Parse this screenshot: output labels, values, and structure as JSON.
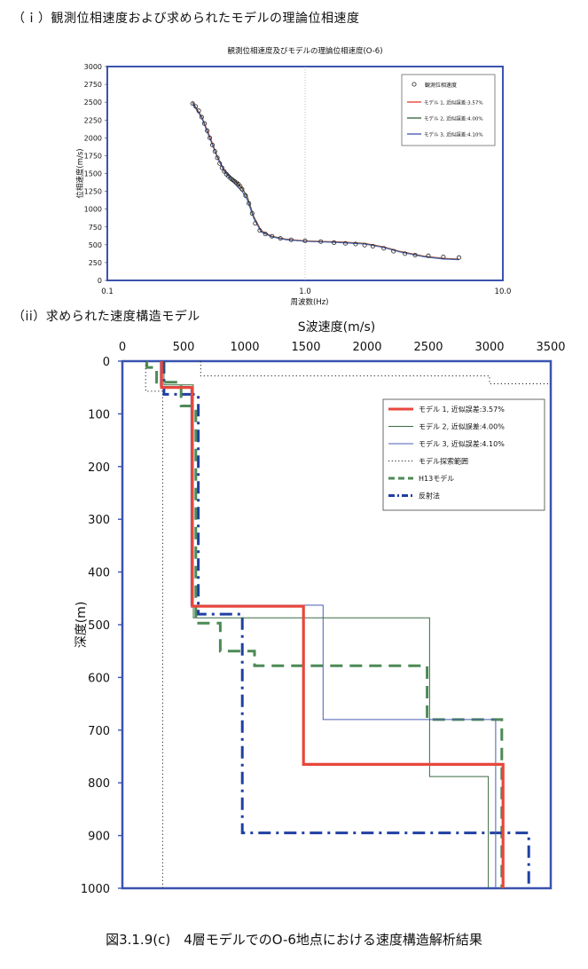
{
  "section_headings": {
    "s1": "（ｉ）観測位相速度および求められたモデルの理論位相速度",
    "s2": "（ii）求められた速度構造モデル"
  },
  "figure_caption": "図3.1.9(c)　4層モデルでのO-6地点における速度構造解析結果",
  "colors": {
    "frame": "#3a53b0",
    "model1": "#e8473c",
    "model2": "#3a6b43",
    "model3": "#4a5fb0",
    "h13": "#4d8a55",
    "reflection": "#1f3fa3",
    "search": "#222222"
  },
  "chart_data": [
    {
      "type": "scatter",
      "title": "観測位相速度及びモデルの理論位相速度(O-6)",
      "xlabel": "周波数(Hz)",
      "ylabel": "位相速度(m/s)",
      "xscale": "log",
      "xlim": [
        0.1,
        10.0
      ],
      "ylim": [
        0,
        3000
      ],
      "x_ticks": [
        "0.1",
        "1.0",
        "10.0"
      ],
      "y_ticks": [
        0,
        250,
        500,
        750,
        1000,
        1250,
        1500,
        1750,
        2000,
        2250,
        2500,
        2750,
        3000
      ],
      "legend_position": "top-right",
      "observed": {
        "name": "観測位相速度",
        "points": [
          [
            0.27,
            2480
          ],
          [
            0.28,
            2440
          ],
          [
            0.29,
            2380
          ],
          [
            0.3,
            2290
          ],
          [
            0.31,
            2200
          ],
          [
            0.32,
            2100
          ],
          [
            0.33,
            2000
          ],
          [
            0.34,
            1900
          ],
          [
            0.35,
            1810
          ],
          [
            0.36,
            1720
          ],
          [
            0.37,
            1640
          ],
          [
            0.38,
            1580
          ],
          [
            0.39,
            1530
          ],
          [
            0.4,
            1490
          ],
          [
            0.41,
            1460
          ],
          [
            0.42,
            1430
          ],
          [
            0.43,
            1410
          ],
          [
            0.44,
            1390
          ],
          [
            0.45,
            1370
          ],
          [
            0.46,
            1350
          ],
          [
            0.47,
            1320
          ],
          [
            0.48,
            1280
          ],
          [
            0.5,
            1190
          ],
          [
            0.52,
            1080
          ],
          [
            0.54,
            940
          ],
          [
            0.56,
            800
          ],
          [
            0.59,
            700
          ],
          [
            0.63,
            650
          ],
          [
            0.68,
            620
          ],
          [
            0.75,
            590
          ],
          [
            0.85,
            570
          ],
          [
            1.0,
            555
          ],
          [
            1.2,
            545
          ],
          [
            1.4,
            530
          ],
          [
            1.6,
            520
          ],
          [
            1.8,
            510
          ],
          [
            2.0,
            495
          ],
          [
            2.2,
            480
          ],
          [
            2.5,
            450
          ],
          [
            2.8,
            410
          ],
          [
            3.2,
            375
          ],
          [
            3.6,
            355
          ],
          [
            4.2,
            345
          ],
          [
            5.0,
            330
          ],
          [
            6.0,
            320
          ]
        ]
      },
      "series": [
        {
          "name": "モデル 1, 近似誤差:3.57%",
          "color": "#e8473c",
          "points": [
            [
              0.27,
              2500
            ],
            [
              0.3,
              2300
            ],
            [
              0.33,
              2020
            ],
            [
              0.36,
              1740
            ],
            [
              0.39,
              1550
            ],
            [
              0.42,
              1460
            ],
            [
              0.45,
              1380
            ],
            [
              0.48,
              1300
            ],
            [
              0.51,
              1180
            ],
            [
              0.55,
              900
            ],
            [
              0.6,
              700
            ],
            [
              0.68,
              620
            ],
            [
              0.8,
              580
            ],
            [
              1.0,
              555
            ],
            [
              1.5,
              540
            ],
            [
              2.0,
              520
            ],
            [
              2.5,
              470
            ],
            [
              3.0,
              410
            ],
            [
              4.0,
              340
            ],
            [
              5.0,
              310
            ],
            [
              6.0,
              300
            ]
          ]
        },
        {
          "name": "モデル 2, 近似誤差:4.00%",
          "color": "#3a6b43",
          "points": [
            [
              0.27,
              2490
            ],
            [
              0.3,
              2290
            ],
            [
              0.33,
              2000
            ],
            [
              0.36,
              1730
            ],
            [
              0.39,
              1540
            ],
            [
              0.42,
              1450
            ],
            [
              0.45,
              1370
            ],
            [
              0.48,
              1290
            ],
            [
              0.51,
              1170
            ],
            [
              0.55,
              890
            ],
            [
              0.6,
              690
            ],
            [
              0.68,
              615
            ],
            [
              0.8,
              575
            ],
            [
              1.0,
              550
            ],
            [
              1.5,
              535
            ],
            [
              2.0,
              515
            ],
            [
              2.5,
              465
            ],
            [
              3.0,
              405
            ],
            [
              4.0,
              335
            ],
            [
              5.0,
              305
            ],
            [
              6.0,
              295
            ]
          ]
        },
        {
          "name": "モデル 3, 近似誤差:4.10%",
          "color": "#4a5fb0",
          "points": [
            [
              0.27,
              2480
            ],
            [
              0.3,
              2280
            ],
            [
              0.33,
              1990
            ],
            [
              0.36,
              1720
            ],
            [
              0.39,
              1530
            ],
            [
              0.42,
              1420
            ],
            [
              0.45,
              1330
            ],
            [
              0.48,
              1250
            ],
            [
              0.51,
              1130
            ],
            [
              0.55,
              870
            ],
            [
              0.6,
              680
            ],
            [
              0.68,
              610
            ],
            [
              0.8,
              570
            ],
            [
              1.0,
              548
            ],
            [
              1.5,
              530
            ],
            [
              2.0,
              510
            ],
            [
              2.5,
              460
            ],
            [
              3.0,
              400
            ],
            [
              4.0,
              330
            ],
            [
              5.0,
              300
            ],
            [
              6.0,
              290
            ]
          ]
        }
      ]
    },
    {
      "type": "line",
      "xlabel": "S波速度(m/s)",
      "ylabel": "深度(m)",
      "xlim": [
        0,
        3500
      ],
      "ylim": [
        1000,
        0
      ],
      "x_ticks": [
        0,
        500,
        1000,
        1500,
        2000,
        2500,
        3000,
        3500
      ],
      "y_ticks": [
        0,
        100,
        200,
        300,
        400,
        500,
        600,
        700,
        800,
        900,
        1000
      ],
      "legend_position": "top-right",
      "series": [
        {
          "name": "モデル 1, 近似誤差:3.57%",
          "color": "#e8473c",
          "style": "solid-thick",
          "points": [
            [
              320,
              0
            ],
            [
              320,
              50
            ],
            [
              570,
              50
            ],
            [
              570,
              465
            ],
            [
              1480,
              465
            ],
            [
              1480,
              765
            ],
            [
              3110,
              765
            ],
            [
              3110,
              1000
            ]
          ]
        },
        {
          "name": "モデル 2, 近似誤差:4.00%",
          "color": "#3a6b43",
          "style": "solid",
          "points": [
            [
              340,
              0
            ],
            [
              340,
              45
            ],
            [
              580,
              45
            ],
            [
              580,
              487
            ],
            [
              2510,
              487
            ],
            [
              2510,
              788
            ],
            [
              2990,
              788
            ],
            [
              2990,
              1000
            ]
          ]
        },
        {
          "name": "モデル 3, 近似誤差:4.10%",
          "color": "#4a5fb0",
          "style": "solid",
          "points": [
            [
              310,
              0
            ],
            [
              310,
              48
            ],
            [
              560,
              48
            ],
            [
              560,
              463
            ],
            [
              1640,
              463
            ],
            [
              1640,
              680
            ],
            [
              3050,
              680
            ],
            [
              3050,
              1000
            ]
          ]
        },
        {
          "name": "モデル探索範囲",
          "color": "#222222",
          "style": "dotted",
          "points": [
            [
              640,
              0
            ],
            [
              640,
              28
            ],
            [
              3000,
              28
            ],
            [
              3000,
              43
            ],
            [
              3500,
              43
            ]
          ]
        },
        {
          "name": "モデル探索範囲",
          "color": "#222222",
          "style": "dotted",
          "legend": false,
          "points": [
            [
              190,
              0
            ],
            [
              190,
              57
            ],
            [
              330,
              57
            ],
            [
              330,
              1000
            ]
          ]
        },
        {
          "name": "H13モデル",
          "color": "#4d8a55",
          "style": "dashed-thick",
          "points": [
            [
              200,
              0
            ],
            [
              200,
              12
            ],
            [
              280,
              12
            ],
            [
              280,
              40
            ],
            [
              480,
              40
            ],
            [
              480,
              85
            ],
            [
              600,
              85
            ],
            [
              600,
              497
            ],
            [
              800,
              497
            ],
            [
              800,
              550
            ],
            [
              1080,
              550
            ],
            [
              1080,
              578
            ],
            [
              2490,
              578
            ],
            [
              2490,
              680
            ],
            [
              3100,
              680
            ],
            [
              3100,
              1000
            ]
          ]
        },
        {
          "name": "反射法",
          "color": "#1f3fa3",
          "style": "dashdot-thick",
          "points": [
            [
              340,
              0
            ],
            [
              340,
              63
            ],
            [
              620,
              63
            ],
            [
              620,
              480
            ],
            [
              980,
              480
            ],
            [
              980,
              895
            ],
            [
              3320,
              895
            ],
            [
              3320,
              1000
            ]
          ]
        }
      ]
    }
  ]
}
